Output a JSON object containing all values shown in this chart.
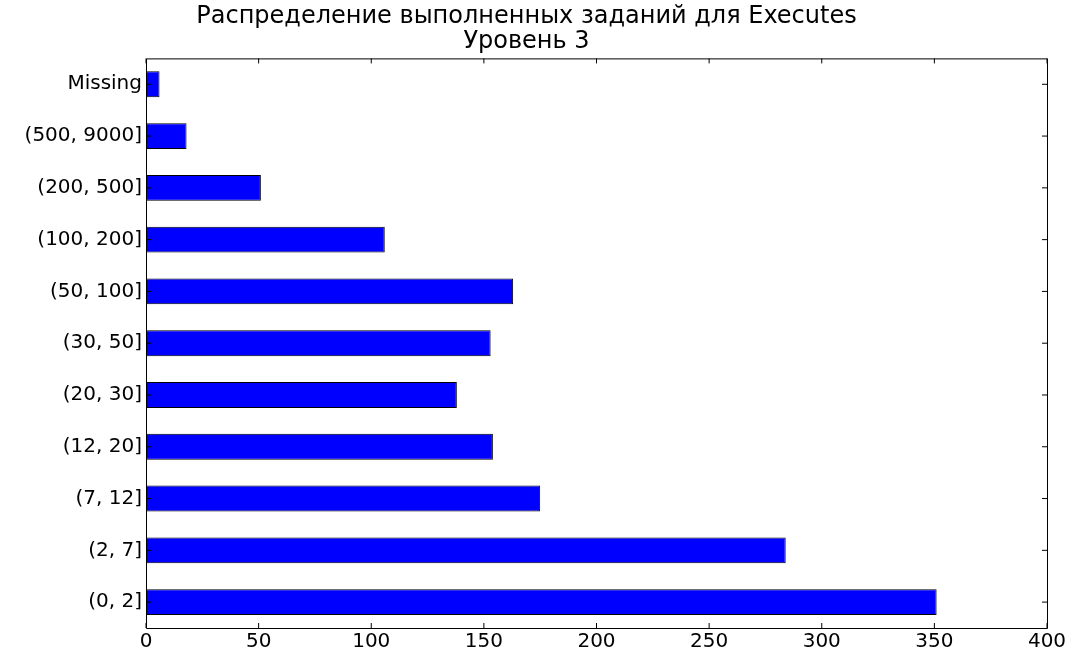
{
  "chart_data": {
    "type": "bar",
    "orientation": "horizontal",
    "title": "Распределение выполненных заданий для Executes",
    "subtitle": "Уровень 3",
    "categories": [
      "Missing",
      "(500, 9000]",
      "(200, 500]",
      "(100, 200]",
      "(50, 100]",
      "(30, 50]",
      "(20, 30]",
      "(12, 20]",
      "(7, 12]",
      "(2, 7]",
      "(0, 2]"
    ],
    "values": [
      6,
      18,
      51,
      106,
      163,
      153,
      138,
      154,
      175,
      284,
      351
    ],
    "color": "#0000ff",
    "xlim": [
      0,
      400
    ],
    "xticks": [
      0,
      50,
      100,
      150,
      200,
      250,
      300,
      350,
      400
    ],
    "grid": false,
    "legend": false
  }
}
